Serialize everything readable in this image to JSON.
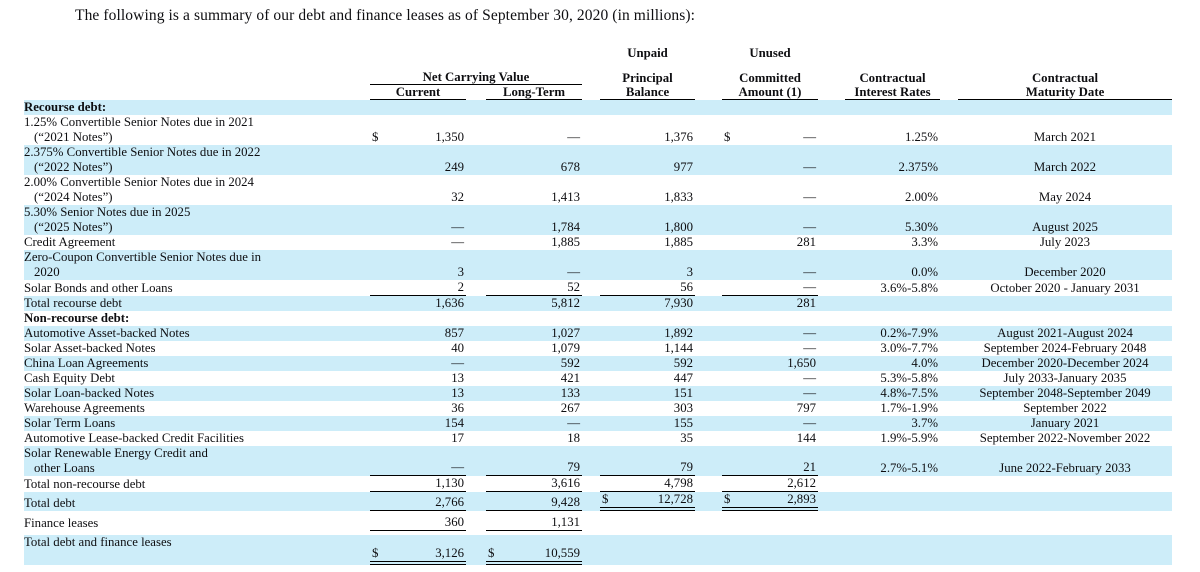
{
  "title": "The following is a summary of our debt and finance leases as of September 30, 2020 (in millions):",
  "colors": {
    "band": "#cdedf9",
    "rule": "#000000",
    "text": "#0e0e11"
  },
  "table": {
    "header": {
      "net_carrying_value": "Net Carrying Value",
      "current": "Current",
      "long_term": "Long-Term",
      "unpaid_l1": "Unpaid",
      "unpaid_l2": "Principal",
      "unpaid_l3": "Balance",
      "unused_l1": "Unused",
      "unused_l2": "Committed",
      "unused_l3": "Amount (1)",
      "rates_l1": "Contractual",
      "rates_l2": "Interest Rates",
      "maturity_l1": "Contractual",
      "maturity_l2": "Maturity Date"
    },
    "rows": [
      {
        "label": "Recourse debt:",
        "bold": true,
        "shade": true
      },
      {
        "label": "1.25% Convertible Senior Notes due in 2021",
        "label2": "(“2021 Notes”)",
        "shade": false,
        "cur": {
          "d": "$",
          "v": "1,350"
        },
        "lt": {
          "v": "—"
        },
        "upb": {
          "v": "1,376"
        },
        "unu": {
          "d": "$",
          "v": "—"
        },
        "rate": "1.25%",
        "mat": "March 2021"
      },
      {
        "label": "2.375% Convertible Senior Notes due in 2022",
        "label2": "(“2022 Notes”)",
        "shade": true,
        "cur": {
          "v": "249"
        },
        "lt": {
          "v": "678"
        },
        "upb": {
          "v": "977"
        },
        "unu": {
          "v": "—"
        },
        "rate": "2.375%",
        "mat": "March 2022"
      },
      {
        "label": "2.00% Convertible Senior Notes due in 2024",
        "label2": "(“2024 Notes”)",
        "shade": false,
        "cur": {
          "v": "32"
        },
        "lt": {
          "v": "1,413"
        },
        "upb": {
          "v": "1,833"
        },
        "unu": {
          "v": "—"
        },
        "rate": "2.00%",
        "mat": "May 2024"
      },
      {
        "label": "5.30% Senior Notes due in 2025",
        "label2": "(“2025 Notes”)",
        "shade": true,
        "cur": {
          "v": "—"
        },
        "lt": {
          "v": "1,784"
        },
        "upb": {
          "v": "1,800"
        },
        "unu": {
          "v": "—"
        },
        "rate": "5.30%",
        "mat": "August 2025"
      },
      {
        "label": "Credit Agreement",
        "shade": false,
        "cur": {
          "v": "—"
        },
        "lt": {
          "v": "1,885"
        },
        "upb": {
          "v": "1,885"
        },
        "unu": {
          "v": "281"
        },
        "rate": "3.3%",
        "mat": "July 2023"
      },
      {
        "label": "Zero-Coupon Convertible Senior Notes due in",
        "label2": "2020",
        "shade": true,
        "cur": {
          "v": "3"
        },
        "lt": {
          "v": "—"
        },
        "upb": {
          "v": "3"
        },
        "unu": {
          "v": "—"
        },
        "rate": "0.0%",
        "mat": "December 2020"
      },
      {
        "label": "Solar Bonds and other Loans",
        "shade": false,
        "cur": {
          "v": "2",
          "u": "s"
        },
        "lt": {
          "v": "52",
          "u": "s"
        },
        "upb": {
          "v": "56",
          "u": "s"
        },
        "unu": {
          "v": "—",
          "u": "s"
        },
        "rate": "3.6%-5.8%",
        "mat": "October 2020 - January 2031"
      },
      {
        "label": "Total recourse debt",
        "shade": true,
        "cur": {
          "v": "1,636"
        },
        "lt": {
          "v": "5,812"
        },
        "upb": {
          "v": "7,930"
        },
        "unu": {
          "v": "281"
        }
      },
      {
        "label": "Non-recourse debt:",
        "bold": true,
        "shade": false
      },
      {
        "label": "Automotive Asset-backed Notes",
        "shade": true,
        "cur": {
          "v": "857"
        },
        "lt": {
          "v": "1,027"
        },
        "upb": {
          "v": "1,892"
        },
        "unu": {
          "v": "—"
        },
        "rate": "0.2%-7.9%",
        "mat": "August 2021-August 2024"
      },
      {
        "label": "Solar Asset-backed Notes",
        "shade": false,
        "cur": {
          "v": "40"
        },
        "lt": {
          "v": "1,079"
        },
        "upb": {
          "v": "1,144"
        },
        "unu": {
          "v": "—"
        },
        "rate": "3.0%-7.7%",
        "mat": "September 2024-February 2048"
      },
      {
        "label": "China Loan Agreements",
        "shade": true,
        "cur": {
          "v": "—"
        },
        "lt": {
          "v": "592"
        },
        "upb": {
          "v": "592"
        },
        "unu": {
          "v": "1,650"
        },
        "rate": "4.0%",
        "mat": "December 2020-December 2024"
      },
      {
        "label": "Cash Equity Debt",
        "shade": false,
        "cur": {
          "v": "13"
        },
        "lt": {
          "v": "421"
        },
        "upb": {
          "v": "447"
        },
        "unu": {
          "v": "—"
        },
        "rate": "5.3%-5.8%",
        "mat": "July 2033-January 2035"
      },
      {
        "label": "Solar Loan-backed Notes",
        "shade": true,
        "cur": {
          "v": "13"
        },
        "lt": {
          "v": "133"
        },
        "upb": {
          "v": "151"
        },
        "unu": {
          "v": "—"
        },
        "rate": "4.8%-7.5%",
        "mat": "September 2048-September 2049"
      },
      {
        "label": "Warehouse Agreements",
        "shade": false,
        "cur": {
          "v": "36"
        },
        "lt": {
          "v": "267"
        },
        "upb": {
          "v": "303"
        },
        "unu": {
          "v": "797"
        },
        "rate": "1.7%-1.9%",
        "mat": "September 2022"
      },
      {
        "label": "Solar Term Loans",
        "shade": true,
        "cur": {
          "v": "154"
        },
        "lt": {
          "v": "—"
        },
        "upb": {
          "v": "155"
        },
        "unu": {
          "v": "—"
        },
        "rate": "3.7%",
        "mat": "January 2021"
      },
      {
        "label": "Automotive Lease-backed Credit Facilities",
        "shade": false,
        "cur": {
          "v": "17"
        },
        "lt": {
          "v": "18"
        },
        "upb": {
          "v": "35"
        },
        "unu": {
          "v": "144"
        },
        "rate": "1.9%-5.9%",
        "mat": "September 2022-November 2022"
      },
      {
        "label": "Solar Renewable Energy Credit and",
        "label2": "other Loans",
        "shade": true,
        "cur": {
          "v": "—",
          "u": "s"
        },
        "lt": {
          "v": "79",
          "u": "s"
        },
        "upb": {
          "v": "79",
          "u": "s"
        },
        "unu": {
          "v": "21",
          "u": "s"
        },
        "rate": "2.7%-5.1%",
        "mat": "June 2022-February 2033"
      },
      {
        "label": "Total non-recourse debt",
        "shade": false,
        "cur": {
          "v": "1,130",
          "u": "s"
        },
        "lt": {
          "v": "3,616",
          "u": "s"
        },
        "upb": {
          "v": "4,798",
          "u": "s"
        },
        "unu": {
          "v": "2,612",
          "u": "s"
        }
      },
      {
        "label": "Total debt",
        "shade": true,
        "cur": {
          "v": "2,766",
          "u": "s"
        },
        "lt": {
          "v": "9,428",
          "u": "s"
        },
        "upb": {
          "d": "$",
          "v": "12,728",
          "u": "d"
        },
        "unu": {
          "d": "$",
          "v": "2,893",
          "u": "d"
        }
      },
      {
        "label": "Finance leases",
        "shade": false,
        "gap": true,
        "cur": {
          "v": "360",
          "u": "s"
        },
        "lt": {
          "v": "1,131",
          "u": "s"
        }
      },
      {
        "label": "Total debt and finance leases",
        "label2": "",
        "shade": true,
        "gap": true,
        "cur": {
          "d": "$",
          "v": "3,126",
          "u": "d"
        },
        "lt": {
          "d": "$",
          "v": "10,559",
          "u": "d"
        }
      }
    ]
  }
}
